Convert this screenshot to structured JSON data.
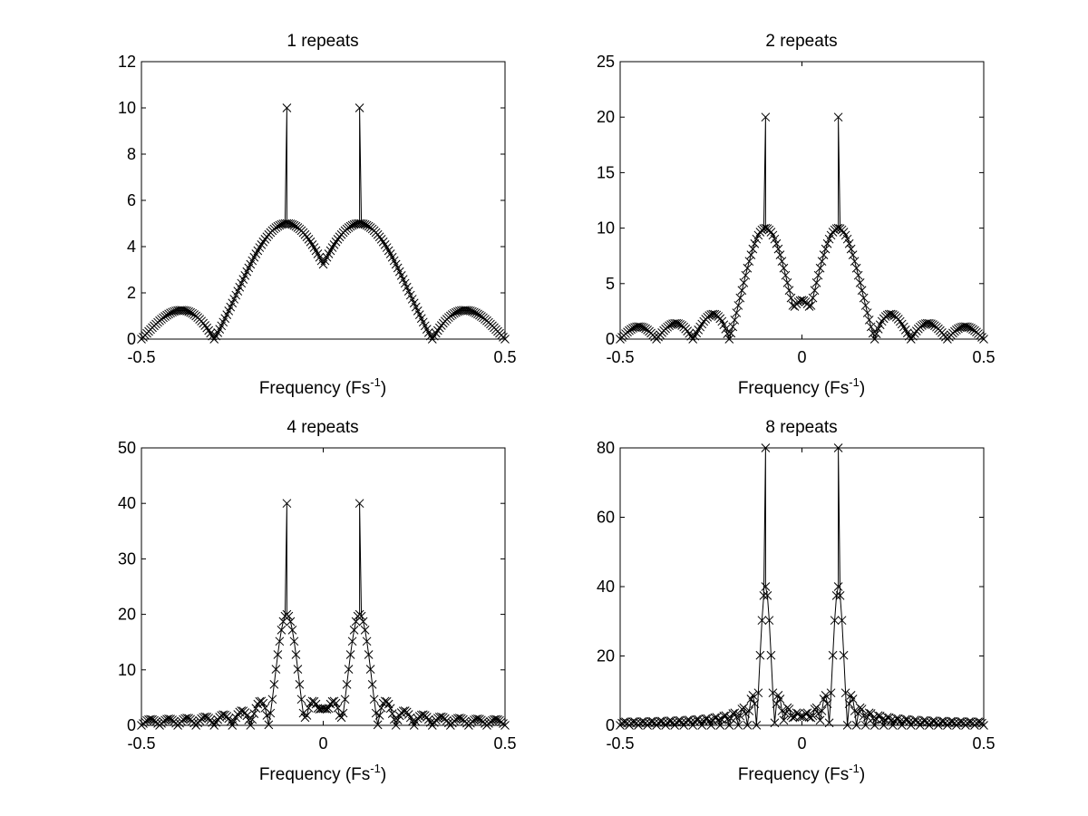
{
  "figure": {
    "background": "#ffffff",
    "line_color": "#000000"
  },
  "chart_data": [
    {
      "type": "line",
      "title": "1 repeats",
      "xlabel": "Frequency (Fs",
      "xlabel_sup": "-1",
      "xlabel_close": ")",
      "xlim": [
        -0.5,
        0.5
      ],
      "ylim": [
        0,
        12
      ],
      "xticks": [
        -0.5,
        0.5
      ],
      "xtick_labels": [
        "-0.5",
        "0.5"
      ],
      "yticks": [
        0,
        2,
        4,
        6,
        8,
        10,
        12
      ],
      "ytick_labels": [
        "0",
        "2",
        "4",
        "6",
        "8",
        "10",
        "12"
      ],
      "marker": "x",
      "grid": false,
      "n_points": 200,
      "peak_frequency": 0.1,
      "peak_value": 10,
      "center_lobe_value": 3.1
    },
    {
      "type": "line",
      "title": "2 repeats",
      "xlabel": "Frequency (Fs",
      "xlabel_sup": "-1",
      "xlabel_close": ")",
      "xlim": [
        -0.5,
        0.5
      ],
      "ylim": [
        0,
        25
      ],
      "xticks": [
        -0.5,
        0,
        0.5
      ],
      "xtick_labels": [
        "-0.5",
        "0",
        "0.5"
      ],
      "yticks": [
        0,
        5,
        10,
        15,
        20,
        25
      ],
      "ytick_labels": [
        "0",
        "5",
        "10",
        "15",
        "20",
        "25"
      ],
      "marker": "x",
      "grid": false,
      "n_points": 200,
      "peak_frequency": 0.1,
      "peak_value": 20,
      "center_lobe_value": 3.5
    },
    {
      "type": "line",
      "title": "4 repeats",
      "xlabel": "Frequency (Fs",
      "xlabel_sup": "-1",
      "xlabel_close": ")",
      "xlim": [
        -0.5,
        0.5
      ],
      "ylim": [
        0,
        50
      ],
      "xticks": [
        -0.5,
        0,
        0.5
      ],
      "xtick_labels": [
        "-0.5",
        "0",
        "0.5"
      ],
      "yticks": [
        0,
        10,
        20,
        30,
        40,
        50
      ],
      "ytick_labels": [
        "0",
        "10",
        "20",
        "30",
        "40",
        "50"
      ],
      "marker": "x",
      "grid": false,
      "n_points": 200,
      "peak_frequency": 0.1,
      "peak_value": 40,
      "center_lobe_value": 3
    },
    {
      "type": "line",
      "title": "8 repeats",
      "xlabel": "Frequency (Fs",
      "xlabel_sup": "-1",
      "xlabel_close": ")",
      "xlim": [
        -0.5,
        0.5
      ],
      "ylim": [
        0,
        80
      ],
      "xticks": [
        -0.5,
        0,
        0.5
      ],
      "xtick_labels": [
        "-0.5",
        "0",
        "0.5"
      ],
      "yticks": [
        0,
        20,
        40,
        60,
        80
      ],
      "ytick_labels": [
        "0",
        "20",
        "40",
        "60",
        "80"
      ],
      "marker": "x",
      "grid": false,
      "n_points": 200,
      "peak_frequency": 0.1,
      "peak_value": 80,
      "center_lobe_value": 2.5
    }
  ]
}
